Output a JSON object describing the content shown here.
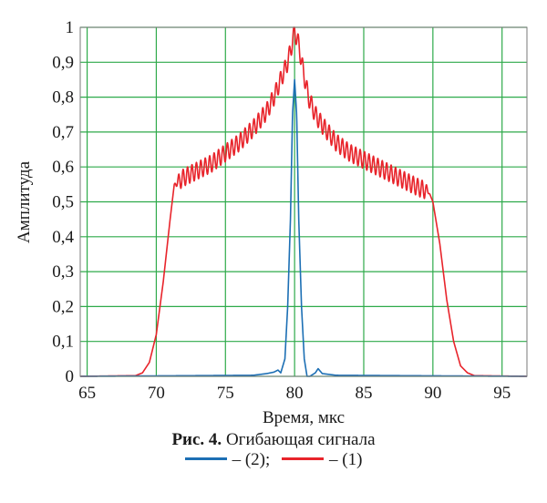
{
  "chart_data": {
    "type": "line",
    "title": "",
    "xlabel": "Время, мкс",
    "ylabel": "Амплитуда",
    "xlim": [
      64.5,
      96.8
    ],
    "ylim": [
      0,
      1
    ],
    "x_ticks": [
      65,
      70,
      75,
      80,
      85,
      90,
      95
    ],
    "x_tick_labels": [
      "65",
      "70",
      "75",
      "80",
      "85",
      "90",
      "95"
    ],
    "y_ticks": [
      0,
      0.1,
      0.2,
      0.3,
      0.4,
      0.5,
      0.6,
      0.7,
      0.8,
      0.9,
      1
    ],
    "y_tick_labels": [
      "0",
      "0,1",
      "0,2",
      "0,3",
      "0,4",
      "0,5",
      "0,6",
      "0,7",
      "0,8",
      "0,9",
      "1"
    ],
    "grid": true,
    "grid_color": "#2eaa4a",
    "series": [
      {
        "name": "(1)",
        "color": "#e8242b",
        "x": [
          64.5,
          68.5,
          69.0,
          69.5,
          70.0,
          70.5,
          71.0,
          71.3,
          72.0,
          73.0,
          74.0,
          75.0,
          76.0,
          77.0,
          78.0,
          78.5,
          79.0,
          79.5,
          79.8,
          80.0,
          80.3,
          80.6,
          81.0,
          81.5,
          82.0,
          83.0,
          84.0,
          85.0,
          86.0,
          87.0,
          88.0,
          89.0,
          89.7,
          90.0,
          90.5,
          91.0,
          91.5,
          92.0,
          92.5,
          93.0,
          96.8
        ],
        "y": [
          0.0,
          0.002,
          0.01,
          0.04,
          0.12,
          0.27,
          0.45,
          0.55,
          0.57,
          0.59,
          0.61,
          0.64,
          0.67,
          0.71,
          0.76,
          0.8,
          0.85,
          0.9,
          0.95,
          0.99,
          0.95,
          0.88,
          0.8,
          0.75,
          0.72,
          0.67,
          0.64,
          0.62,
          0.6,
          0.58,
          0.56,
          0.54,
          0.53,
          0.5,
          0.38,
          0.22,
          0.1,
          0.03,
          0.01,
          0.002,
          0.0
        ],
        "ripple": {
          "period": 0.32,
          "amplitude": 0.025,
          "x_range": [
            71.3,
            89.8
          ]
        }
      },
      {
        "name": "(2)",
        "color": "#1c6fb4",
        "x": [
          64.5,
          77.0,
          78.0,
          78.5,
          78.8,
          79.0,
          79.3,
          79.5,
          79.7,
          79.85,
          80.0,
          80.15,
          80.3,
          80.5,
          80.7,
          80.9,
          81.1,
          81.5,
          81.7,
          82.0,
          83.0,
          96.8
        ],
        "y": [
          0.0,
          0.003,
          0.008,
          0.012,
          0.018,
          0.01,
          0.05,
          0.2,
          0.45,
          0.75,
          0.85,
          0.75,
          0.45,
          0.2,
          0.05,
          0.0,
          0.0,
          0.01,
          0.022,
          0.008,
          0.003,
          0.0
        ]
      }
    ]
  },
  "caption": {
    "figure_number": "Рис. 4.",
    "text": " Огибающая сигнала"
  },
  "legend": {
    "items": [
      {
        "text": "– (2);",
        "color": "#1c6fb4"
      },
      {
        "text": "– (1)",
        "color": "#e8242b"
      }
    ]
  }
}
